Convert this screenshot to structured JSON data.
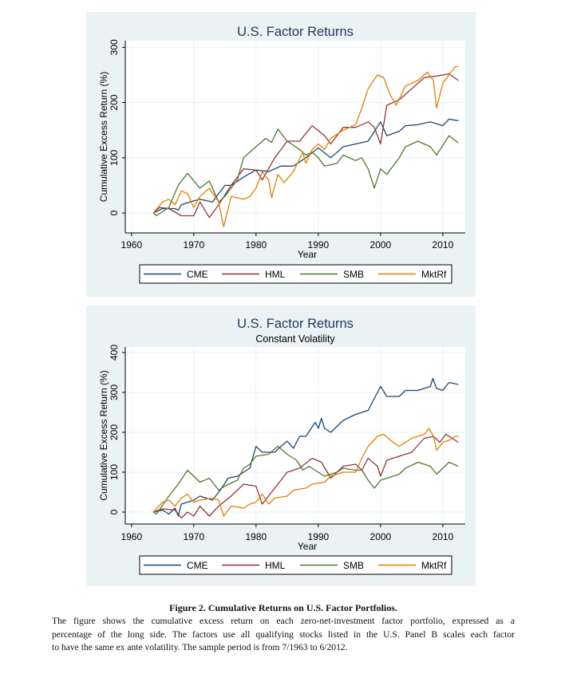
{
  "colors": {
    "CME": "#1a476f",
    "HML": "#90353b",
    "SMB": "#55752f",
    "MktRf": "#e37e00",
    "background": "#eaf2f3",
    "plot": "#ffffff"
  },
  "chart_data": [
    {
      "type": "line",
      "title": "U.S. Factor Returns",
      "subtitle": "",
      "xlabel": "Year",
      "ylabel": "Cumulative Excess Return (%)",
      "xlim": [
        1959,
        2013.6
      ],
      "ylim": [
        -36,
        312
      ],
      "xticks": [
        1960,
        1970,
        1980,
        1990,
        2000,
        2010
      ],
      "yticks": [
        0,
        100,
        200,
        300
      ],
      "grid": true,
      "legend": "bottom",
      "series": [
        {
          "name": "CME",
          "x": [
            1963.5,
            1965,
            1967,
            1967.5,
            1968,
            1970,
            1971,
            1973,
            1975,
            1976,
            1978,
            1980,
            1982,
            1984,
            1986,
            1988,
            1990,
            1992,
            1994,
            1996,
            1998,
            2000,
            2001,
            2003,
            2004,
            2006,
            2008,
            2010,
            2011,
            2012.5
          ],
          "y": [
            0,
            8,
            8,
            5,
            15,
            22,
            25,
            20,
            50,
            50,
            65,
            78,
            75,
            85,
            85,
            100,
            118,
            100,
            120,
            125,
            130,
            165,
            140,
            148,
            158,
            160,
            165,
            158,
            170,
            167
          ]
        },
        {
          "name": "HML",
          "x": [
            1963.5,
            1964.5,
            1966,
            1968,
            1970,
            1971,
            1972.5,
            1974,
            1976,
            1978,
            1980,
            1981,
            1983,
            1985,
            1987,
            1989,
            1991,
            1992,
            1994,
            1996,
            1998,
            1999,
            2000,
            2001,
            2003,
            2005,
            2007,
            2009,
            2011,
            2012.5
          ],
          "y": [
            0,
            10,
            8,
            -5,
            -5,
            20,
            -8,
            15,
            50,
            80,
            78,
            60,
            100,
            130,
            130,
            158,
            140,
            125,
            155,
            155,
            165,
            155,
            125,
            195,
            205,
            225,
            245,
            248,
            252,
            240
          ]
        },
        {
          "name": "SMB",
          "x": [
            1963.5,
            1964,
            1966,
            1967.5,
            1969,
            1971,
            1972.5,
            1974,
            1975,
            1977,
            1978,
            1980,
            1981.5,
            1982.5,
            1983.5,
            1985,
            1987,
            1988,
            1989,
            1990,
            1991,
            1993,
            1994,
            1996,
            1997,
            1998,
            1999,
            2000,
            2001,
            2003,
            2004,
            2006,
            2008,
            2009,
            2011,
            2012.5
          ],
          "y": [
            0,
            -5,
            10,
            50,
            72,
            45,
            58,
            20,
            30,
            60,
            100,
            120,
            135,
            128,
            152,
            130,
            115,
            105,
            110,
            100,
            85,
            90,
            105,
            95,
            100,
            80,
            45,
            80,
            70,
            100,
            120,
            130,
            120,
            105,
            140,
            127
          ]
        },
        {
          "name": "MktRf",
          "x": [
            1963.5,
            1965,
            1966,
            1967,
            1968,
            1969,
            1970,
            1971,
            1972.5,
            1974,
            1974.8,
            1976,
            1978,
            1979,
            1980,
            1981,
            1982,
            1982.5,
            1983.5,
            1984.5,
            1986,
            1987.5,
            1988,
            1989,
            1990,
            1991,
            1992,
            1994,
            1996,
            1997,
            1998,
            1999.5,
            2000.5,
            2001.5,
            2002.5,
            2004,
            2006,
            2007.5,
            2008.5,
            2009,
            2010,
            2011,
            2012,
            2012.5
          ],
          "y": [
            0,
            20,
            25,
            15,
            40,
            35,
            10,
            30,
            45,
            20,
            -25,
            30,
            25,
            30,
            45,
            75,
            60,
            28,
            70,
            55,
            75,
            110,
            90,
            115,
            125,
            115,
            135,
            150,
            160,
            190,
            225,
            250,
            245,
            215,
            195,
            230,
            240,
            255,
            240,
            190,
            235,
            250,
            265,
            265
          ]
        }
      ]
    },
    {
      "type": "line",
      "title": "U.S. Factor Returns",
      "subtitle": "Constant Volatility",
      "xlabel": "Year",
      "ylabel": "Cumulative Excess Return (%)",
      "xlim": [
        1959,
        2013.6
      ],
      "ylim": [
        -30,
        414
      ],
      "xticks": [
        1960,
        1970,
        1980,
        1990,
        2000,
        2010
      ],
      "yticks": [
        0,
        100,
        200,
        300,
        400
      ],
      "grid": true,
      "legend": "bottom",
      "series": [
        {
          "name": "CME",
          "x": [
            1963.5,
            1965,
            1966,
            1967,
            1967.5,
            1968,
            1970,
            1971,
            1973,
            1974.5,
            1975.5,
            1977,
            1979,
            1980,
            1981,
            1983,
            1984,
            1985,
            1986,
            1987,
            1988,
            1989.5,
            1990,
            1990.5,
            1991,
            1992,
            1994,
            1996,
            1998,
            1999,
            2000,
            2001,
            2003,
            2004,
            2006,
            2008,
            2008.4,
            2009,
            2010,
            2011,
            2012.5
          ],
          "y": [
            0,
            5,
            -5,
            10,
            -10,
            20,
            30,
            40,
            30,
            60,
            85,
            90,
            110,
            165,
            150,
            150,
            165,
            178,
            160,
            190,
            190,
            225,
            210,
            235,
            210,
            200,
            230,
            245,
            255,
            285,
            315,
            290,
            290,
            305,
            305,
            315,
            335,
            310,
            305,
            325,
            320
          ]
        },
        {
          "name": "HML",
          "x": [
            1963.5,
            1965,
            1967,
            1968,
            1969,
            1970,
            1971,
            1972.5,
            1974,
            1976,
            1978,
            1980,
            1981,
            1983,
            1985,
            1987,
            1989,
            1990.5,
            1992,
            1994,
            1996,
            1997,
            1998,
            1999.5,
            2000,
            2001,
            2003,
            2005,
            2007,
            2008.5,
            2009.5,
            2010.5,
            2012,
            2012.5
          ],
          "y": [
            0,
            8,
            5,
            -15,
            0,
            -10,
            15,
            -10,
            15,
            40,
            70,
            65,
            20,
            60,
            100,
            110,
            135,
            125,
            85,
            115,
            120,
            105,
            135,
            115,
            90,
            130,
            140,
            150,
            185,
            190,
            175,
            195,
            180,
            175
          ]
        },
        {
          "name": "SMB",
          "x": [
            1963.5,
            1964,
            1966,
            1967.5,
            1969,
            1971,
            1972.5,
            1974,
            1975,
            1977,
            1978,
            1979,
            1980,
            1982,
            1983.5,
            1985,
            1986.5,
            1987.5,
            1988.5,
            1990,
            1991,
            1993,
            1994,
            1996,
            1997,
            1998,
            1999,
            2000,
            2001,
            2003,
            2004,
            2006,
            2008,
            2009,
            2011,
            2012.5
          ],
          "y": [
            0,
            -5,
            40,
            70,
            105,
            75,
            85,
            55,
            65,
            80,
            110,
            120,
            140,
            145,
            165,
            145,
            130,
            105,
            115,
            100,
            90,
            100,
            110,
            105,
            105,
            80,
            60,
            80,
            85,
            95,
            110,
            125,
            115,
            95,
            125,
            115
          ]
        },
        {
          "name": "MktRf",
          "x": [
            1963.5,
            1965,
            1966,
            1967,
            1968,
            1969,
            1970,
            1971,
            1973,
            1974,
            1974.8,
            1976,
            1978,
            1979,
            1980,
            1981,
            1982,
            1983,
            1985,
            1986,
            1988,
            1989,
            1991,
            1992,
            1994,
            1996,
            1997,
            1998,
            1999.5,
            2000.5,
            2002,
            2003,
            2005,
            2007,
            2007.8,
            2008.5,
            2009,
            2010,
            2011,
            2012,
            2012.5
          ],
          "y": [
            0,
            25,
            30,
            15,
            35,
            45,
            25,
            30,
            35,
            30,
            -10,
            15,
            10,
            20,
            25,
            45,
            20,
            35,
            40,
            55,
            60,
            70,
            75,
            90,
            100,
            100,
            135,
            165,
            190,
            195,
            175,
            165,
            185,
            195,
            210,
            190,
            155,
            175,
            180,
            190,
            190
          ]
        }
      ]
    }
  ],
  "caption": {
    "title": "Figure 2. Cumulative Returns on U.S. Factor Portfolios.",
    "lines": [
      "The figure shows the cumulative excess return on each zero-net-investment factor portfolio, expressed as a",
      "percentage of the long side. The factors use all qualifying stocks listed in the U.S. Panel B scales each factor",
      "to have the same ex ante volatility. The sample period is from 7/1963 to 6/2012."
    ]
  }
}
